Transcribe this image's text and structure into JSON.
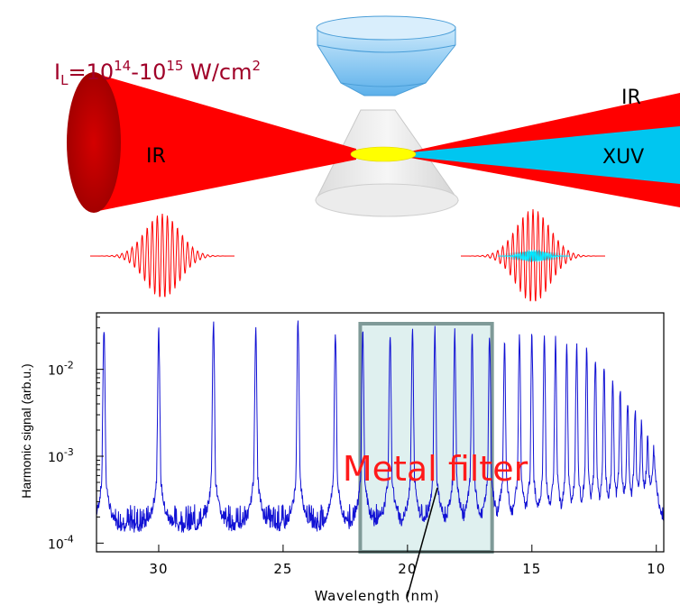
{
  "intensity": {
    "prefix": "I",
    "sub": "L",
    "eq": "=10",
    "exp1": "14",
    "mid": "-10",
    "exp2": "15",
    "unit": " W/cm",
    "exp3": "2"
  },
  "beam_labels": {
    "ir_left": "IR",
    "ir_right": "IR",
    "xuv": "XUV"
  },
  "colors": {
    "ir_beam": "#ff0000",
    "xuv_beam": "#00c8f0",
    "focus": "#ffff00",
    "intensity_text": "#a00028",
    "spectrum_line": "#1010d0",
    "filter_box": "#7f9a98",
    "filter_fill": "#dff0ef",
    "filter_text": "#ff1a1a"
  },
  "icons": {
    "lens": "focusing-optic-icon",
    "cone": "gas-jet-cone-icon"
  },
  "chart_data": {
    "type": "line",
    "title": "",
    "xlabel": "Wavelength (nm)",
    "ylabel": "Harmonic signal (arb.u.)",
    "xlim": [
      32.5,
      9.7
    ],
    "ylim_log10": [
      -4.1,
      -1.35
    ],
    "x_ticks": [
      30,
      25,
      20,
      15,
      10
    ],
    "y_tick_labels": [
      {
        "value": 0.01,
        "base": "10",
        "exp": "-2"
      },
      {
        "value": 0.001,
        "base": "10",
        "exp": "-3"
      },
      {
        "value": 0.0001,
        "base": "10",
        "exp": "-4"
      }
    ],
    "harmonic_peaks": [
      {
        "x": 32.2,
        "y": 0.028
      },
      {
        "x": 30.0,
        "y": 0.028
      },
      {
        "x": 27.8,
        "y": 0.035
      },
      {
        "x": 26.1,
        "y": 0.028
      },
      {
        "x": 24.4,
        "y": 0.035
      },
      {
        "x": 22.9,
        "y": 0.026
      },
      {
        "x": 21.8,
        "y": 0.028
      },
      {
        "x": 20.7,
        "y": 0.025
      },
      {
        "x": 19.8,
        "y": 0.028
      },
      {
        "x": 18.9,
        "y": 0.03
      },
      {
        "x": 18.1,
        "y": 0.026
      },
      {
        "x": 17.4,
        "y": 0.025
      },
      {
        "x": 16.7,
        "y": 0.024
      },
      {
        "x": 16.1,
        "y": 0.02
      },
      {
        "x": 15.5,
        "y": 0.025
      },
      {
        "x": 15.0,
        "y": 0.025
      },
      {
        "x": 14.5,
        "y": 0.024
      },
      {
        "x": 14.05,
        "y": 0.022
      },
      {
        "x": 13.6,
        "y": 0.02
      },
      {
        "x": 13.2,
        "y": 0.018
      },
      {
        "x": 12.8,
        "y": 0.016
      },
      {
        "x": 12.45,
        "y": 0.014
      },
      {
        "x": 12.1,
        "y": 0.011
      },
      {
        "x": 11.75,
        "y": 0.008
      },
      {
        "x": 11.45,
        "y": 0.006
      },
      {
        "x": 11.15,
        "y": 0.0045
      },
      {
        "x": 10.85,
        "y": 0.0032
      },
      {
        "x": 10.6,
        "y": 0.0024
      },
      {
        "x": 10.35,
        "y": 0.0017
      },
      {
        "x": 10.1,
        "y": 0.0012
      }
    ],
    "baseline": 0.00015,
    "annotation": {
      "text": "Metal filter",
      "x_range": [
        21.9,
        16.6
      ]
    }
  }
}
